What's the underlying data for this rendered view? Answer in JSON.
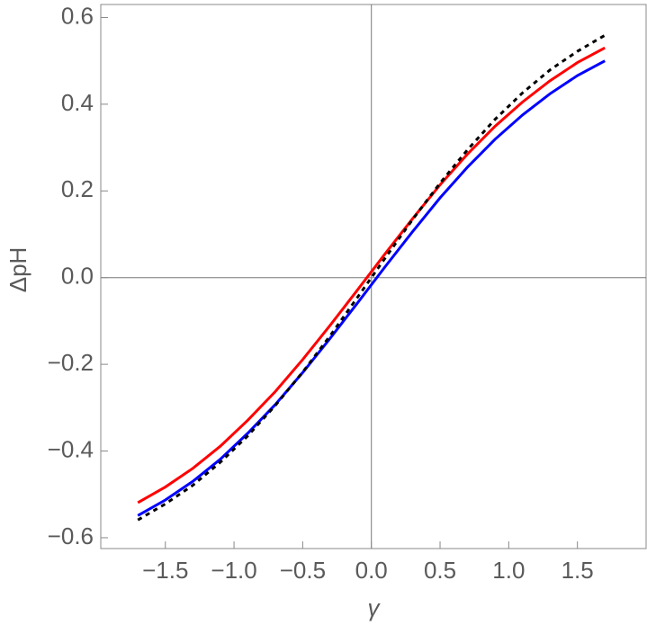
{
  "chart_data": {
    "type": "line",
    "x_label": "γ",
    "y_label": "ΔpH",
    "x": [
      -1.7,
      -1.5,
      -1.3,
      -1.1,
      -0.9,
      -0.7,
      -0.5,
      -0.3,
      -0.1,
      0.1,
      0.3,
      0.5,
      0.7,
      0.9,
      1.1,
      1.3,
      1.5,
      1.7
    ],
    "series": [
      {
        "color": "#ff0000",
        "dash": false,
        "values": [
          -0.519,
          -0.483,
          -0.44,
          -0.389,
          -0.329,
          -0.263,
          -0.189,
          -0.11,
          -0.028,
          0.055,
          0.136,
          0.214,
          0.285,
          0.349,
          0.405,
          0.454,
          0.496,
          0.53
        ]
      },
      {
        "color": "#0000ff",
        "dash": false,
        "values": [
          -0.549,
          -0.513,
          -0.47,
          -0.419,
          -0.359,
          -0.293,
          -0.219,
          -0.14,
          -0.058,
          0.025,
          0.106,
          0.184,
          0.255,
          0.319,
          0.375,
          0.424,
          0.466,
          0.5
        ]
      },
      {
        "color": "#000000",
        "dash": true,
        "values": [
          -0.559,
          -0.522,
          -0.479,
          -0.426,
          -0.365,
          -0.295,
          -0.218,
          -0.134,
          -0.045,
          0.045,
          0.134,
          0.218,
          0.295,
          0.365,
          0.426,
          0.479,
          0.522,
          0.559
        ]
      }
    ],
    "xlim": [
      -1.97,
      2.0
    ],
    "ylim": [
      -0.625,
      0.63
    ],
    "xticks": [
      {
        "value": -1.5,
        "label": "−1.5"
      },
      {
        "value": -1.0,
        "label": "−1.0"
      },
      {
        "value": -0.5,
        "label": "−0.5"
      },
      {
        "value": 0,
        "label": "0.0"
      },
      0.5,
      {
        "value": 1.0,
        "label": "1.0"
      },
      1.5
    ],
    "yticks": [
      {
        "value": -0.6,
        "label": "−0.6"
      },
      {
        "value": -0.4,
        "label": "−0.4"
      },
      {
        "value": -0.2,
        "label": "−0.2"
      },
      {
        "value": 0,
        "label": "0.0"
      },
      0.2,
      0.4,
      0.6
    ]
  }
}
